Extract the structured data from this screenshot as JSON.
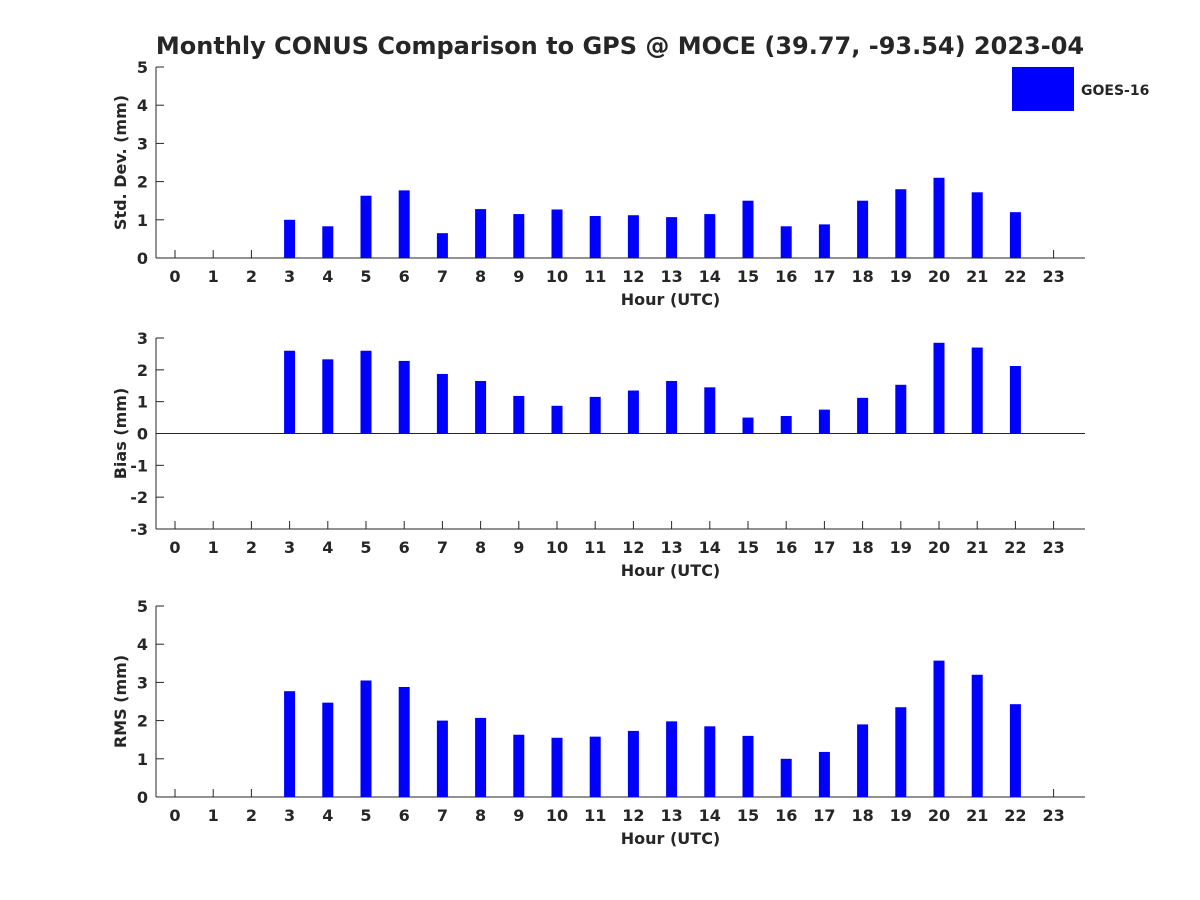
{
  "chart_data": {
    "type": "bar",
    "title": "Monthly CONUS Comparison to GPS @ MOCE (39.77, -93.54) 2023-04",
    "legend": {
      "entries": [
        "GOES-16"
      ],
      "color": "#0000ff",
      "placement": "top-right"
    },
    "categories": [
      0,
      1,
      2,
      3,
      4,
      5,
      6,
      7,
      8,
      9,
      10,
      11,
      12,
      13,
      14,
      15,
      16,
      17,
      18,
      19,
      20,
      21,
      22,
      23
    ],
    "panels": [
      {
        "name": "std-dev",
        "ylabel": "Std. Dev. (mm)",
        "xlabel": "Hour (UTC)",
        "ylim": [
          0,
          5
        ],
        "yticks": [
          0,
          1,
          2,
          3,
          4,
          5
        ],
        "series": [
          {
            "name": "GOES-16",
            "values": [
              null,
              null,
              null,
              1.0,
              0.83,
              1.63,
              1.77,
              0.65,
              1.28,
              1.15,
              1.27,
              1.1,
              1.12,
              1.07,
              1.15,
              1.5,
              0.83,
              0.88,
              1.5,
              1.8,
              2.1,
              1.72,
              1.2,
              null
            ]
          }
        ]
      },
      {
        "name": "bias",
        "ylabel": "Bias (mm)",
        "xlabel": "Hour (UTC)",
        "ylim": [
          -3,
          3
        ],
        "yticks": [
          -3,
          -2,
          -1,
          0,
          1,
          2,
          3
        ],
        "series": [
          {
            "name": "GOES-16",
            "values": [
              null,
              null,
              null,
              2.6,
              2.33,
              2.6,
              2.28,
              1.87,
              1.65,
              1.18,
              0.87,
              1.15,
              1.35,
              1.65,
              1.45,
              0.5,
              0.55,
              0.75,
              1.12,
              1.53,
              2.85,
              2.7,
              2.12,
              null
            ]
          }
        ]
      },
      {
        "name": "rms",
        "ylabel": "RMS (mm)",
        "xlabel": "Hour (UTC)",
        "ylim": [
          0,
          5
        ],
        "yticks": [
          0,
          1,
          2,
          3,
          4,
          5
        ],
        "series": [
          {
            "name": "GOES-16",
            "values": [
              null,
              null,
              null,
              2.77,
              2.47,
              3.05,
              2.88,
              2.0,
              2.07,
              1.63,
              1.55,
              1.58,
              1.73,
              1.98,
              1.85,
              1.6,
              1.0,
              1.18,
              1.9,
              2.35,
              3.57,
              3.2,
              2.43,
              null
            ]
          }
        ]
      }
    ]
  }
}
